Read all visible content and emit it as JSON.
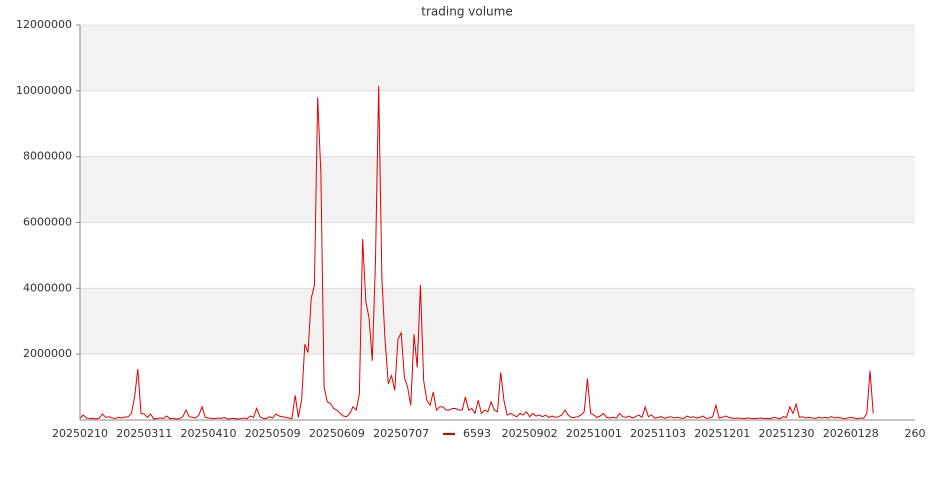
{
  "chart_data": {
    "type": "line",
    "title": "trading volume",
    "categories": [
      "20250210",
      null,
      null,
      null,
      null,
      null,
      null,
      null,
      null,
      null,
      null,
      null,
      null,
      null,
      null,
      null,
      null,
      null,
      null,
      null,
      "20250311",
      null,
      null,
      null,
      null,
      null,
      null,
      null,
      null,
      null,
      null,
      null,
      null,
      null,
      null,
      null,
      null,
      null,
      null,
      null,
      "20250410",
      null,
      null,
      null,
      null,
      null,
      null,
      null,
      null,
      null,
      null,
      null,
      null,
      null,
      null,
      null,
      null,
      null,
      null,
      null,
      "20250509",
      null,
      null,
      null,
      null,
      null,
      null,
      null,
      null,
      null,
      null,
      null,
      null,
      null,
      null,
      null,
      null,
      null,
      null,
      null,
      "20250609",
      null,
      null,
      null,
      null,
      null,
      null,
      null,
      null,
      null,
      null,
      null,
      null,
      null,
      null,
      null,
      null,
      null,
      null,
      null,
      "20250707",
      null,
      null,
      null,
      null,
      null,
      null,
      null,
      null,
      null,
      null,
      null,
      null,
      null,
      null,
      null,
      null,
      null,
      null,
      null,
      null,
      null,
      null,
      null,
      null,
      null,
      null,
      null,
      null,
      null,
      null,
      null,
      null,
      null,
      null,
      null,
      null,
      null,
      null,
      null,
      "20250902",
      null,
      null,
      null,
      null,
      null,
      null,
      null,
      null,
      null,
      null,
      null,
      null,
      null,
      null,
      null,
      null,
      null,
      null,
      null,
      "20251001",
      null,
      null,
      null,
      null,
      null,
      null,
      null,
      null,
      null,
      null,
      null,
      null,
      null,
      null,
      null,
      null,
      null,
      null,
      null,
      "20251103",
      null,
      null,
      null,
      null,
      null,
      null,
      null,
      null,
      null,
      null,
      null,
      null,
      null,
      null,
      null,
      null,
      null,
      null,
      null,
      "20251201",
      null,
      null,
      null,
      null,
      null,
      null,
      null,
      null,
      null,
      null,
      null,
      null,
      null,
      null,
      null,
      null,
      null,
      null,
      null,
      "20251230",
      null,
      null,
      null,
      null,
      null,
      null,
      null,
      null,
      null,
      null,
      null,
      null,
      null,
      null,
      null,
      null,
      null,
      null,
      null,
      "20260128",
      null,
      null,
      null,
      null,
      null,
      null,
      null,
      null,
      null,
      null,
      null,
      null,
      null,
      null,
      null,
      null,
      null,
      null,
      null,
      "260"
    ],
    "series": [
      {
        "name": "6593",
        "color": "#e00000",
        "values": [
          50000,
          150000,
          60000,
          40000,
          50000,
          30000,
          60000,
          180000,
          80000,
          100000,
          60000,
          50000,
          80000,
          60000,
          90000,
          100000,
          200000,
          700000,
          1550000,
          200000,
          180000,
          80000,
          180000,
          30000,
          50000,
          60000,
          50000,
          120000,
          40000,
          50000,
          30000,
          40000,
          100000,
          300000,
          100000,
          80000,
          60000,
          150000,
          400000,
          80000,
          60000,
          50000,
          40000,
          60000,
          50000,
          80000,
          30000,
          40000,
          50000,
          30000,
          40000,
          60000,
          40000,
          120000,
          80000,
          350000,
          100000,
          50000,
          40000,
          100000,
          60000,
          180000,
          120000,
          100000,
          80000,
          60000,
          40000,
          750000,
          80000,
          600000,
          2300000,
          2050000,
          3700000,
          4100000,
          9800000,
          7500000,
          1000000,
          550000,
          500000,
          350000,
          300000,
          200000,
          120000,
          100000,
          200000,
          400000,
          300000,
          800000,
          5500000,
          3600000,
          3100000,
          1800000,
          4800000,
          10150000,
          4300000,
          2400000,
          1100000,
          1350000,
          900000,
          2450000,
          2650000,
          1300000,
          1000000,
          450000,
          2600000,
          1600000,
          4100000,
          1200000,
          600000,
          450000,
          850000,
          300000,
          400000,
          400000,
          300000,
          300000,
          350000,
          350000,
          300000,
          300000,
          700000,
          300000,
          350000,
          200000,
          600000,
          200000,
          300000,
          250000,
          550000,
          300000,
          250000,
          1450000,
          600000,
          150000,
          200000,
          150000,
          100000,
          200000,
          150000,
          250000,
          100000,
          200000,
          120000,
          150000,
          100000,
          150000,
          80000,
          120000,
          80000,
          100000,
          150000,
          300000,
          150000,
          80000,
          80000,
          100000,
          150000,
          250000,
          1250000,
          200000,
          150000,
          80000,
          120000,
          200000,
          80000,
          60000,
          80000,
          60000,
          200000,
          100000,
          80000,
          120000,
          60000,
          100000,
          150000,
          80000,
          400000,
          100000,
          150000,
          50000,
          80000,
          100000,
          50000,
          80000,
          100000,
          60000,
          80000,
          60000,
          50000,
          120000,
          80000,
          100000,
          60000,
          80000,
          120000,
          50000,
          60000,
          100000,
          450000,
          60000,
          80000,
          120000,
          80000,
          60000,
          50000,
          60000,
          50000,
          40000,
          60000,
          50000,
          40000,
          50000,
          60000,
          40000,
          50000,
          40000,
          80000,
          60000,
          40000,
          100000,
          80000,
          400000,
          200000,
          480000,
          80000,
          100000,
          60000,
          80000,
          60000,
          50000,
          80000,
          60000,
          80000,
          60000,
          100000,
          60000,
          80000,
          60000,
          40000,
          60000,
          80000,
          60000,
          40000,
          60000,
          50000,
          200000,
          1500000,
          200000,
          null,
          null,
          null,
          null,
          null,
          null,
          null,
          null,
          null,
          null,
          null,
          null,
          null
        ]
      }
    ],
    "ylim": [
      0,
      12000000
    ],
    "yticks": [
      2000000,
      4000000,
      6000000,
      8000000,
      10000000,
      12000000
    ],
    "grid": true
  }
}
